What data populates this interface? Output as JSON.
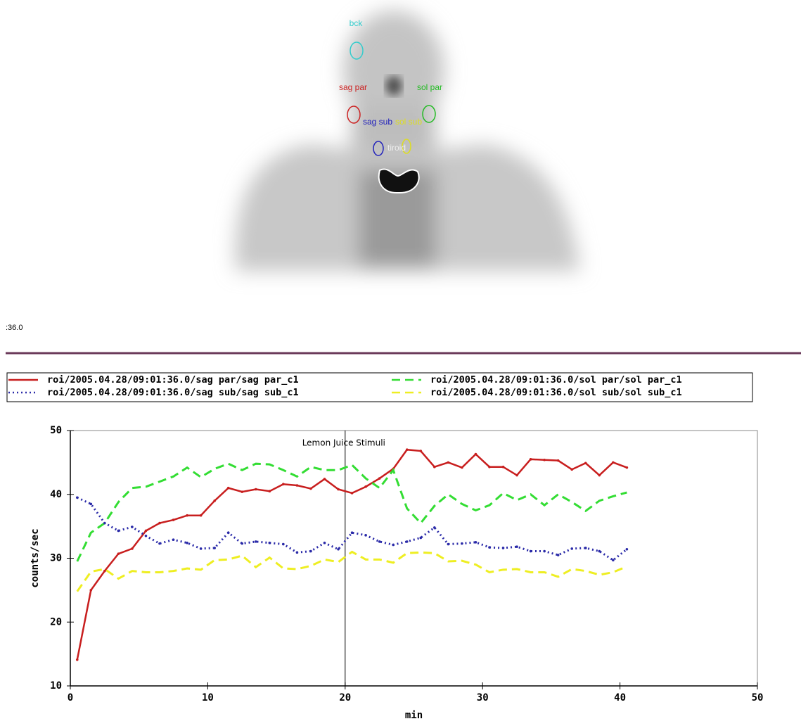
{
  "scan": {
    "labels": [
      "bck",
      "sag par",
      "sol par",
      "sag sub",
      "sol sub",
      "tiroid"
    ]
  },
  "header_fragment": ":36.0",
  "chart_data": {
    "type": "line",
    "xlabel": "min",
    "ylabel": "counts/sec",
    "annotation": {
      "text": "Lemon Juice Stimuli",
      "x": 20
    },
    "xlim": [
      0,
      50
    ],
    "xticks": [
      0,
      10,
      20,
      30,
      40,
      50
    ],
    "ylim": [
      10,
      50
    ],
    "yticks": [
      10,
      20,
      30,
      40,
      50
    ],
    "x": [
      0.5,
      1.5,
      2.5,
      3.5,
      4.5,
      5.5,
      6.5,
      7.5,
      8.5,
      9.5,
      10.5,
      11.5,
      12.5,
      13.5,
      14.5,
      15.5,
      16.5,
      17.5,
      18.5,
      19.5,
      20.5,
      21.5,
      22.5,
      23.5,
      24.5,
      25.5,
      26.5,
      27.5,
      28.5,
      29.5,
      30.5,
      31.5,
      32.5,
      33.5,
      34.5,
      35.5,
      36.5,
      37.5,
      38.5,
      39.5,
      40.5
    ],
    "series": [
      {
        "name": "roi/2005.04.28/09:01:36.0/sag par/sag par_c1",
        "color": "#c81e1e",
        "style": "solid",
        "values": [
          14.1,
          25,
          28,
          30.7,
          31.5,
          34.3,
          35.5,
          36,
          36.7,
          36.7,
          39,
          41,
          40.4,
          40.8,
          40.5,
          41.6,
          41.4,
          40.9,
          42.4,
          40.8,
          40.2,
          41.2,
          42.5,
          44,
          47,
          46.8,
          44.3,
          45,
          44.2,
          46.3,
          44.3,
          44.3,
          43,
          45.5,
          45.4,
          45.3,
          43.9,
          44.9,
          43,
          45,
          44.2
        ]
      },
      {
        "name": "roi/2005.04.28/09:01:36.0/sol par/sol par_c1",
        "color": "#33dd33",
        "style": "dashed",
        "values": [
          29.5,
          34,
          35.5,
          38.8,
          41,
          41.2,
          42,
          42.8,
          44.2,
          42.7,
          44,
          44.8,
          43.8,
          44.8,
          44.7,
          43.8,
          42.8,
          44.3,
          43.8,
          43.8,
          44.6,
          42.5,
          41,
          43.8,
          37.8,
          35.5,
          38.2,
          40,
          38.5,
          37.5,
          38.3,
          40.2,
          39.1,
          40,
          38.3,
          40,
          38.8,
          37.4,
          39,
          39.7,
          40.3
        ]
      },
      {
        "name": "roi/2005.04.28/09:01:36.0/sag sub/sag sub_c1",
        "color": "#2a2aa8",
        "style": "dotted",
        "values": [
          39.5,
          38.5,
          35.5,
          34.3,
          34.9,
          33.5,
          32.3,
          32.9,
          32.4,
          31.5,
          31.6,
          34,
          32.3,
          32.6,
          32.4,
          32.2,
          30.9,
          31.1,
          32.4,
          31.4,
          34,
          33.6,
          32.6,
          32.1,
          32.6,
          33.2,
          34.8,
          32.2,
          32.3,
          32.5,
          31.7,
          31.6,
          31.8,
          31.1,
          31.1,
          30.5,
          31.5,
          31.6,
          31.1,
          29.7,
          31.4
        ]
      },
      {
        "name": "roi/2005.04.28/09:01:36.0/sol sub/sol sub_c1",
        "color": "#eeee22",
        "style": "dashed",
        "values": [
          24.8,
          27.9,
          28.3,
          26.8,
          28,
          27.8,
          27.8,
          28,
          28.4,
          28.2,
          29.7,
          29.8,
          30.4,
          28.6,
          30.1,
          28.4,
          28.3,
          28.8,
          29.8,
          29.4,
          31,
          29.8,
          29.8,
          29.3,
          30.8,
          30.9,
          30.8,
          29.5,
          29.6,
          29,
          27.8,
          28.2,
          28.3,
          27.8,
          27.8,
          27.1,
          28.3,
          28,
          27.4,
          27.8,
          28.7
        ]
      }
    ]
  }
}
